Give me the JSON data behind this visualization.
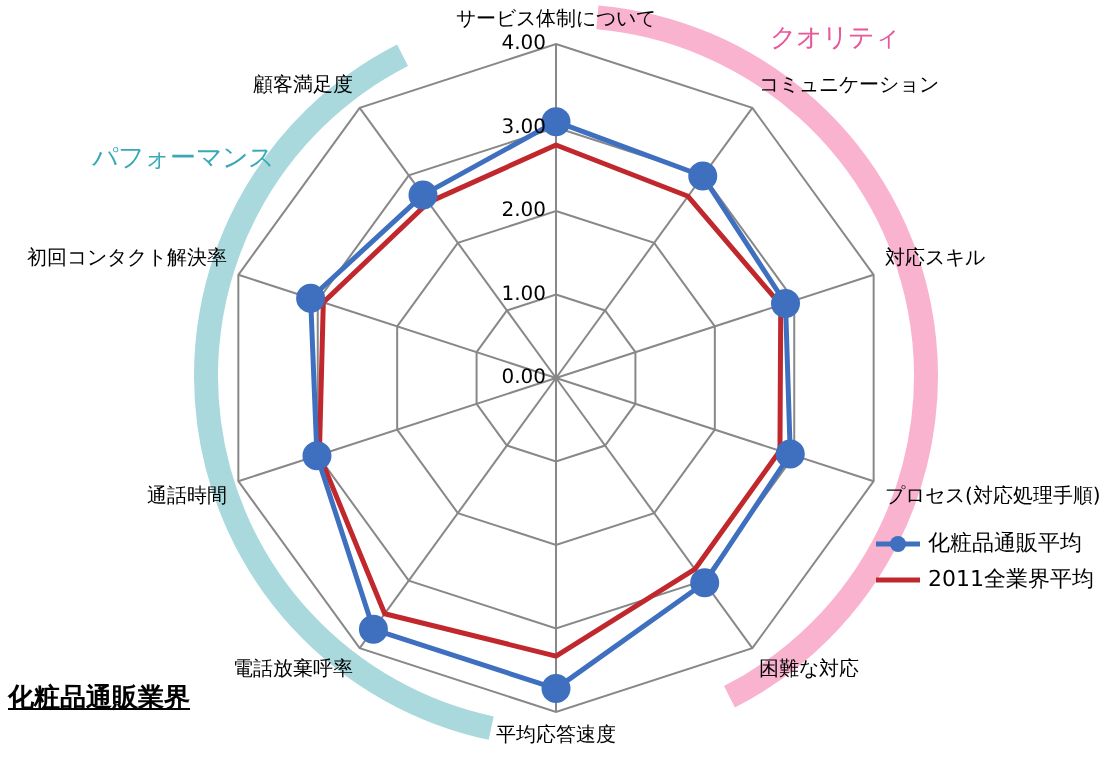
{
  "chart_data": {
    "type": "radar",
    "title": "化粧品通販業界",
    "categories": [
      "サービス体制について",
      "コミュニケーション",
      "対応スキル",
      "プロセス(対応処理手順)",
      "困難な対応",
      "平均応答速度",
      "電話放棄呼率",
      "通話時間",
      "初回コンタクト解決率",
      "顧客満足度"
    ],
    "series": [
      {
        "name": "化粧品通販平均",
        "color": "#3f6fbf",
        "marker": "circle",
        "values": [
          3.07,
          2.99,
          2.89,
          2.95,
          3.03,
          3.72,
          3.72,
          3.01,
          3.09,
          2.71
        ]
      },
      {
        "name": "2011全業界平均",
        "color": "#c0282d",
        "marker": "none",
        "values": [
          2.79,
          2.69,
          2.83,
          2.82,
          2.83,
          3.33,
          3.49,
          2.98,
          2.93,
          2.6
        ]
      }
    ],
    "ylim": [
      0,
      4
    ],
    "yticks": [
      {
        "value": 0,
        "label": "0.00"
      },
      {
        "value": 1,
        "label": "1.00"
      },
      {
        "value": 2,
        "label": "2.00"
      },
      {
        "value": 3,
        "label": "3.00"
      },
      {
        "value": 4,
        "label": "4.00"
      }
    ],
    "grid": true,
    "legend": "bottom right",
    "annotations": [
      "クオリティ",
      "パフォーマンス"
    ]
  }
}
